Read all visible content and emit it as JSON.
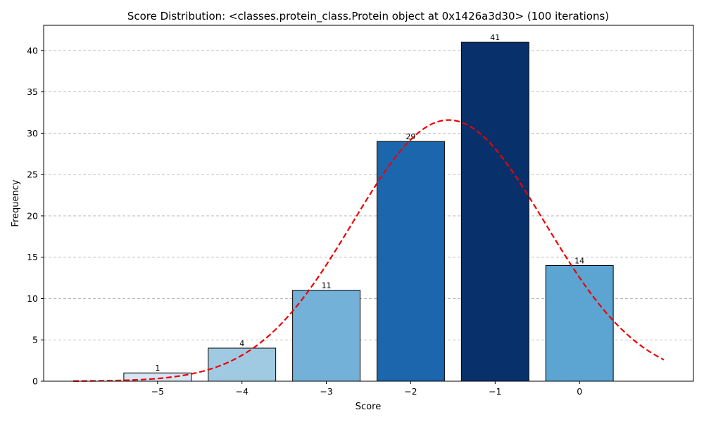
{
  "chart_data": {
    "type": "bar",
    "title": "Score Distribution: <classes.protein_class.Protein object at 0x1426a3d30> (100 iterations)",
    "xlabel": "Score",
    "ylabel": "Frequency",
    "x": [
      -5,
      -4,
      -3,
      -2,
      -1,
      0
    ],
    "values": [
      1,
      4,
      11,
      29,
      41,
      14
    ],
    "bar_colors": [
      "#d6e6f4",
      "#a0c9e2",
      "#74b1d8",
      "#1b66ad",
      "#08306b",
      "#5ca4d1"
    ],
    "xlim": [
      -6.35,
      1.35
    ],
    "ylim": [
      0,
      43.05
    ],
    "xticks": [
      -5,
      -4,
      -3,
      -2,
      -1,
      0
    ],
    "xtick_labels": [
      "−5",
      "−4",
      "−3",
      "−2",
      "−1",
      "0"
    ],
    "yticks": [
      0,
      5,
      10,
      15,
      20,
      25,
      30,
      35,
      40
    ],
    "grid": "y dashed",
    "curve": {
      "style": "red dashed",
      "color": "#ee0000",
      "type": "normal fit",
      "mean": -1.55,
      "sd": 1.14,
      "peak": 31.6,
      "x_range": [
        -6,
        1
      ]
    }
  }
}
